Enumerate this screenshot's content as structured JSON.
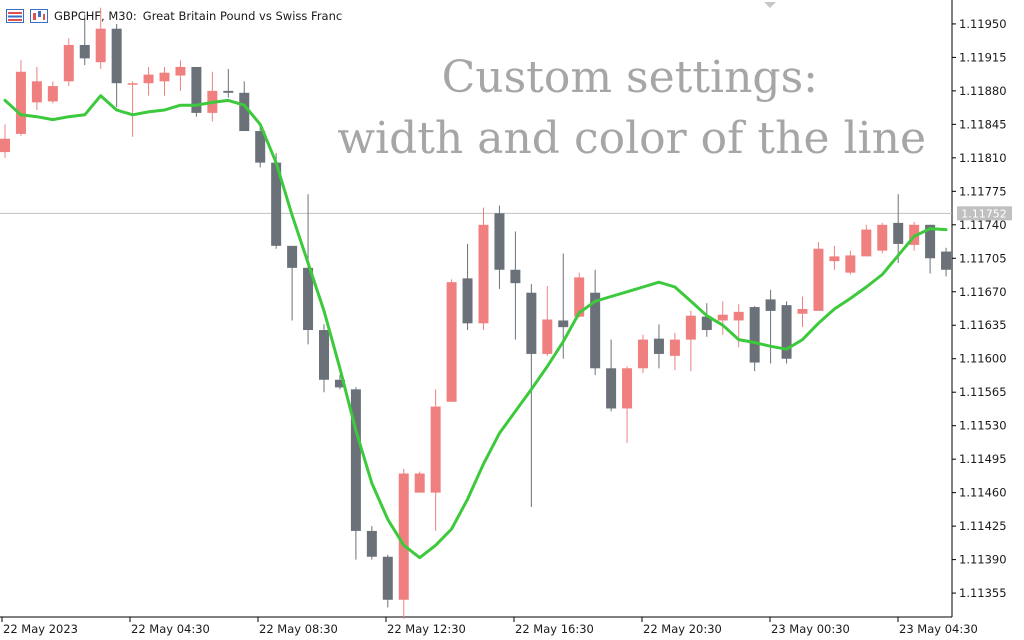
{
  "header": {
    "symbol": "GBPCHF, M30:",
    "description": "Great Britain Pound vs Swiss Franc"
  },
  "overlay": {
    "line1": "Custom settings:",
    "line2": "width and color of the line"
  },
  "price_axis": {
    "ticks": [
      "1.11950",
      "1.11915",
      "1.11880",
      "1.11845",
      "1.11810",
      "1.11775",
      "1.11740",
      "1.11705",
      "1.11670",
      "1.11635",
      "1.11600",
      "1.11565",
      "1.11530",
      "1.11495",
      "1.11460",
      "1.11425",
      "1.11390",
      "1.11355"
    ],
    "current_price_label": "1.11752"
  },
  "time_axis": {
    "labels": [
      "22 May 2023",
      "22 May 04:30",
      "22 May 08:30",
      "22 May 12:30",
      "22 May 16:30",
      "22 May 20:30",
      "23 May 00:30",
      "23 May 04:30"
    ]
  },
  "colors": {
    "bull": "#f08080",
    "bear": "#6b7178",
    "ma_line": "#3cc93c",
    "price_line": "#c0c0c0",
    "grid": "#e0e0e0"
  },
  "chart_data": {
    "type": "candlestick",
    "symbol": "GBPCHF",
    "timeframe": "M30",
    "current_price": 1.11752,
    "ylim": [
      1.1133,
      1.11975
    ],
    "candles": [
      {
        "o": 1.11816,
        "h": 1.11845,
        "l": 1.1181,
        "c": 1.1183
      },
      {
        "o": 1.11835,
        "h": 1.11912,
        "l": 1.11833,
        "c": 1.119
      },
      {
        "o": 1.11868,
        "h": 1.11905,
        "l": 1.1186,
        "c": 1.1189
      },
      {
        "o": 1.11869,
        "h": 1.1189,
        "l": 1.11867,
        "c": 1.11885
      },
      {
        "o": 1.1189,
        "h": 1.11935,
        "l": 1.11885,
        "c": 1.11928
      },
      {
        "o": 1.11928,
        "h": 1.1196,
        "l": 1.11907,
        "c": 1.11914
      },
      {
        "o": 1.1191,
        "h": 1.11967,
        "l": 1.11903,
        "c": 1.11945
      },
      {
        "o": 1.11945,
        "h": 1.1195,
        "l": 1.11863,
        "c": 1.11888
      },
      {
        "o": 1.11887,
        "h": 1.1189,
        "l": 1.11832,
        "c": 1.11888
      },
      {
        "o": 1.11888,
        "h": 1.11905,
        "l": 1.11875,
        "c": 1.11897
      },
      {
        "o": 1.1189,
        "h": 1.11905,
        "l": 1.11875,
        "c": 1.11899
      },
      {
        "o": 1.11896,
        "h": 1.11912,
        "l": 1.1188,
        "c": 1.11905
      },
      {
        "o": 1.11905,
        "h": 1.11905,
        "l": 1.11853,
        "c": 1.11857
      },
      {
        "o": 1.11857,
        "h": 1.119,
        "l": 1.11848,
        "c": 1.1188
      },
      {
        "o": 1.1188,
        "h": 1.11903,
        "l": 1.11873,
        "c": 1.11878
      },
      {
        "o": 1.11878,
        "h": 1.1189,
        "l": 1.11838,
        "c": 1.11838
      },
      {
        "o": 1.11838,
        "h": 1.11842,
        "l": 1.118,
        "c": 1.11805
      },
      {
        "o": 1.11805,
        "h": 1.11815,
        "l": 1.11715,
        "c": 1.11718
      },
      {
        "o": 1.11718,
        "h": 1.11715,
        "l": 1.1164,
        "c": 1.11695
      },
      {
        "o": 1.11695,
        "h": 1.11772,
        "l": 1.11615,
        "c": 1.1163
      },
      {
        "o": 1.1163,
        "h": 1.11636,
        "l": 1.11565,
        "c": 1.11578
      },
      {
        "o": 1.11578,
        "h": 1.11583,
        "l": 1.11568,
        "c": 1.1157
      },
      {
        "o": 1.11568,
        "h": 1.1157,
        "l": 1.1139,
        "c": 1.1142
      },
      {
        "o": 1.1142,
        "h": 1.11425,
        "l": 1.1139,
        "c": 1.11393
      },
      {
        "o": 1.11393,
        "h": 1.11395,
        "l": 1.1134,
        "c": 1.11348
      },
      {
        "o": 1.11348,
        "h": 1.11485,
        "l": 1.11328,
        "c": 1.1148
      },
      {
        "o": 1.1146,
        "h": 1.11482,
        "l": 1.1146,
        "c": 1.1148
      },
      {
        "o": 1.1146,
        "h": 1.11568,
        "l": 1.1142,
        "c": 1.1155
      },
      {
        "o": 1.11555,
        "h": 1.11683,
        "l": 1.11555,
        "c": 1.1168
      },
      {
        "o": 1.11684,
        "h": 1.1172,
        "l": 1.1163,
        "c": 1.11637
      },
      {
        "o": 1.11637,
        "h": 1.11758,
        "l": 1.1163,
        "c": 1.1174
      },
      {
        "o": 1.11752,
        "h": 1.1176,
        "l": 1.11673,
        "c": 1.11693
      },
      {
        "o": 1.11693,
        "h": 1.11733,
        "l": 1.1162,
        "c": 1.11679
      },
      {
        "o": 1.11669,
        "h": 1.11678,
        "l": 1.11445,
        "c": 1.11605
      },
      {
        "o": 1.11605,
        "h": 1.11676,
        "l": 1.11603,
        "c": 1.11641
      },
      {
        "o": 1.1164,
        "h": 1.1171,
        "l": 1.116,
        "c": 1.11633
      },
      {
        "o": 1.11644,
        "h": 1.1169,
        "l": 1.11643,
        "c": 1.11685
      },
      {
        "o": 1.11669,
        "h": 1.11693,
        "l": 1.11583,
        "c": 1.1159
      },
      {
        "o": 1.1159,
        "h": 1.1162,
        "l": 1.11545,
        "c": 1.11548
      },
      {
        "o": 1.11548,
        "h": 1.11592,
        "l": 1.11512,
        "c": 1.1159
      },
      {
        "o": 1.1159,
        "h": 1.11625,
        "l": 1.11585,
        "c": 1.1162
      },
      {
        "o": 1.11621,
        "h": 1.11636,
        "l": 1.1159,
        "c": 1.11605
      },
      {
        "o": 1.11603,
        "h": 1.11627,
        "l": 1.11588,
        "c": 1.1162
      },
      {
        "o": 1.1162,
        "h": 1.1165,
        "l": 1.11587,
        "c": 1.11645
      },
      {
        "o": 1.11644,
        "h": 1.11658,
        "l": 1.11623,
        "c": 1.1163
      },
      {
        "o": 1.1164,
        "h": 1.1166,
        "l": 1.11625,
        "c": 1.11646
      },
      {
        "o": 1.1164,
        "h": 1.11657,
        "l": 1.11612,
        "c": 1.11649
      },
      {
        "o": 1.11654,
        "h": 1.11655,
        "l": 1.11587,
        "c": 1.11596
      },
      {
        "o": 1.11662,
        "h": 1.11672,
        "l": 1.11595,
        "c": 1.1165
      },
      {
        "o": 1.11656,
        "h": 1.1166,
        "l": 1.11595,
        "c": 1.116
      },
      {
        "o": 1.11647,
        "h": 1.11665,
        "l": 1.11633,
        "c": 1.11652
      },
      {
        "o": 1.1165,
        "h": 1.11722,
        "l": 1.11655,
        "c": 1.11715
      },
      {
        "o": 1.11702,
        "h": 1.11718,
        "l": 1.11693,
        "c": 1.11707
      },
      {
        "o": 1.1169,
        "h": 1.11713,
        "l": 1.11688,
        "c": 1.11708
      },
      {
        "o": 1.11707,
        "h": 1.1174,
        "l": 1.11709,
        "c": 1.11735
      },
      {
        "o": 1.11713,
        "h": 1.11742,
        "l": 1.1171,
        "c": 1.1174
      },
      {
        "o": 1.11742,
        "h": 1.11772,
        "l": 1.117,
        "c": 1.1172
      },
      {
        "o": 1.11719,
        "h": 1.11743,
        "l": 1.11713,
        "c": 1.1174
      },
      {
        "o": 1.1174,
        "h": 1.1174,
        "l": 1.11689,
        "c": 1.11705
      },
      {
        "o": 1.11712,
        "h": 1.11716,
        "l": 1.11686,
        "c": 1.11693
      }
    ],
    "ma_line": {
      "color": "#3cc93c",
      "values": [
        1.1187,
        1.11855,
        1.11853,
        1.1185,
        1.11853,
        1.11855,
        1.11875,
        1.1186,
        1.11855,
        1.11858,
        1.1186,
        1.11865,
        1.11865,
        1.11868,
        1.1187,
        1.11865,
        1.11845,
        1.11805,
        1.1175,
        1.117,
        1.1165,
        1.1159,
        1.11525,
        1.1147,
        1.11432,
        1.11405,
        1.11392,
        1.11405,
        1.11422,
        1.11453,
        1.1149,
        1.11522,
        1.11545,
        1.11568,
        1.11592,
        1.11618,
        1.11648,
        1.1166,
        1.11665,
        1.1167,
        1.11675,
        1.1168,
        1.11675,
        1.1166,
        1.11645,
        1.11635,
        1.1162,
        1.11617,
        1.11613,
        1.1161,
        1.1162,
        1.11637,
        1.11652,
        1.11663,
        1.11675,
        1.11688,
        1.11708,
        1.11728,
        1.11736,
        1.11735
      ]
    }
  }
}
